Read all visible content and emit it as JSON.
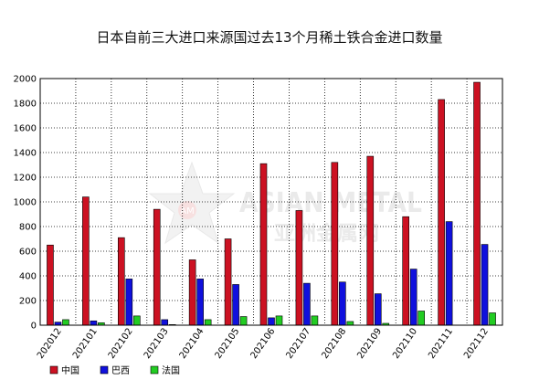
{
  "chart_data": {
    "type": "bar",
    "title": "日本自前三大进口来源国过去13个月稀土铁合金进口数量",
    "xlabel": "",
    "ylabel": "",
    "categories": [
      "202012",
      "202101",
      "202102",
      "202103",
      "202104",
      "202105",
      "202106",
      "202107",
      "202108",
      "202109",
      "202110",
      "202111",
      "202112"
    ],
    "ylim": [
      0,
      2000
    ],
    "yticks": [
      0,
      200,
      400,
      600,
      800,
      1000,
      1200,
      1400,
      1600,
      1800,
      2000
    ],
    "grid": true,
    "legend_position": "bottom-left",
    "series": [
      {
        "name": "中国",
        "color": "#cc1122",
        "values": [
          650,
          1040,
          710,
          940,
          530,
          700,
          1310,
          930,
          1320,
          1370,
          880,
          1830,
          1970
        ]
      },
      {
        "name": "巴西",
        "color": "#1010dd",
        "values": [
          25,
          35,
          375,
          45,
          375,
          330,
          60,
          340,
          350,
          255,
          455,
          840,
          655
        ]
      },
      {
        "name": "法国",
        "color": "#22cc22",
        "values": [
          45,
          20,
          75,
          5,
          45,
          70,
          75,
          75,
          30,
          15,
          115,
          0,
          100
        ]
      }
    ]
  },
  "watermark": {
    "text_en": "ASIAN METAL",
    "text_cn": "亚洲金属网",
    "badge": "AM"
  }
}
